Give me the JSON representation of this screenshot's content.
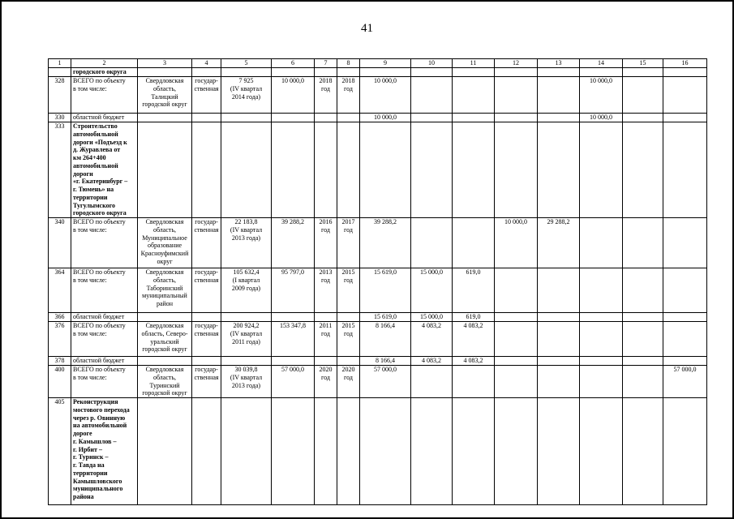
{
  "page": {
    "number": "41"
  },
  "table": {
    "columns": [
      "1",
      "2",
      "3",
      "4",
      "5",
      "6",
      "7",
      "8",
      "9",
      "10",
      "11",
      "12",
      "13",
      "14",
      "15",
      "16"
    ],
    "rows": [
      {
        "bold_desc": true,
        "cells": [
          "",
          "городского округа",
          "",
          "",
          "",
          "",
          "",
          "",
          "",
          "",
          "",
          "",
          "",
          "",
          "",
          ""
        ]
      },
      {
        "bold_desc": false,
        "cells": [
          "328",
          "ВСЕГО по объекту\nв том числе:",
          "Свердловская\nобласть,\nТалицкий\nгородской округ",
          "государ-\nственная",
          "7 925\n(IV квартал\n2014 года)",
          "10 000,0",
          "2018\nгод",
          "2018\nгод",
          "10 000,0",
          "",
          "",
          "",
          "",
          "10 000,0",
          "",
          ""
        ]
      },
      {
        "bold_desc": false,
        "cells": [
          "330",
          "областной бюджет",
          "",
          "",
          "",
          "",
          "",
          "",
          "10 000,0",
          "",
          "",
          "",
          "",
          "10 000,0",
          "",
          ""
        ]
      },
      {
        "bold_desc": true,
        "cells": [
          "333",
          "Строительство\nавтомобильной\nдороги «Подъезд к\nд. Журавлева от\nкм 264+400\nавтомобильной\nдороги\n«г. Екатеринбург –\nг. Тюмень» на\nтерритории\nТугулымского\nгородского округа",
          "",
          "",
          "",
          "",
          "",
          "",
          "",
          "",
          "",
          "",
          "",
          "",
          "",
          ""
        ]
      },
      {
        "bold_desc": false,
        "cells": [
          "340",
          "ВСЕГО по объекту\nв том числе:",
          "Свердловская\nобласть,\nМуниципальное\nобразование\nКрасноуфимский\nокруг",
          "государ-\nственная",
          "22 183,8\n(IV квартал\n2013 года)",
          "39 288,2",
          "2016\nгод",
          "2017\nгод",
          "39 288,2",
          "",
          "",
          "10 000,0",
          "29 288,2",
          "",
          "",
          ""
        ]
      },
      {
        "bold_desc": false,
        "cells": [
          "364",
          "ВСЕГО по объекту\nв том числе:",
          "Свердловская\nобласть,\nТаборинский\nмуниципальный\nрайон",
          "государ-\nственная",
          "105 632,4\n(I квартал\n2009 года)",
          "95 797,0",
          "2013\nгод",
          "2015\nгод",
          "15 619,0",
          "15 000,0",
          "619,0",
          "",
          "",
          "",
          "",
          ""
        ]
      },
      {
        "bold_desc": false,
        "cells": [
          "366",
          "областной бюджет",
          "",
          "",
          "",
          "",
          "",
          "",
          "15 619,0",
          "15 000,0",
          "619,0",
          "",
          "",
          "",
          "",
          ""
        ]
      },
      {
        "bold_desc": false,
        "cells": [
          "376",
          "ВСЕГО по объекту\nв том числе:",
          "Свердловская\nобласть, Северо-\nуральский\nгородской округ",
          "государ-\nственная",
          "200 924,2\n(IV квартал\n2011 года)",
          "153 347,8",
          "2011\nгод",
          "2015\nгод",
          "8 166,4",
          "4 083,2",
          "4 083,2",
          "",
          "",
          "",
          "",
          ""
        ]
      },
      {
        "bold_desc": false,
        "cells": [
          "378",
          "областной бюджет",
          "",
          "",
          "",
          "",
          "",
          "",
          "8 166,4",
          "4 083,2",
          "4 083,2",
          "",
          "",
          "",
          "",
          ""
        ]
      },
      {
        "bold_desc": false,
        "cells": [
          "400",
          "ВСЕГО по объекту\nв том числе:",
          "Свердловская\nобласть,\nТуринский\nгородской округ",
          "государ-\nственная",
          "30 039,8\n(IV квартал\n2013 года)",
          "57 000,0",
          "2020\nгод",
          "2020\nгод",
          "57 000,0",
          "",
          "",
          "",
          "",
          "",
          "",
          "57 000,0"
        ]
      },
      {
        "bold_desc": true,
        "cells": [
          "405",
          "Реконструкция\nмостового перехода\nчерез р. Овинную\nна автомобильной\nдороге\nг. Камышлов –\nг. Ирбит –\nг. Туринск –\nг. Тавда на\nтерритории\nКамышловского\nмуниципального\nрайона",
          "",
          "",
          "",
          "",
          "",
          "",
          "",
          "",
          "",
          "",
          "",
          "",
          "",
          ""
        ]
      }
    ]
  }
}
